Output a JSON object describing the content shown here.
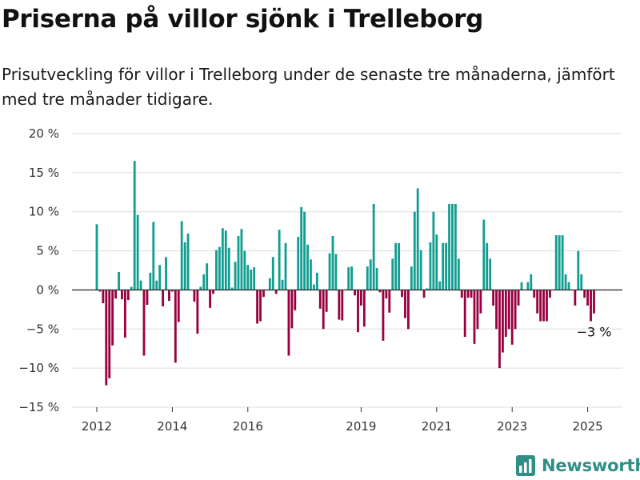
{
  "title": "Priserna på villor sjönk i Trelleborg",
  "subtitle": "Prisutveckling för villor i Trelleborg under de senaste tre månaderna, jämfört med tre månader tidigare.",
  "brand": {
    "name": "Newsworthy",
    "icon": "newsworthy-bar-chart-logo"
  },
  "colors": {
    "positive": "#129d91",
    "negative": "#990040",
    "grid": "#dddddd",
    "zero_line": "#333333"
  },
  "chart_data": {
    "type": "bar",
    "ylim": [
      -15,
      20
    ],
    "y_ticks": [
      {
        "value": 20,
        "label": "20 %"
      },
      {
        "value": 15,
        "label": "15 %"
      },
      {
        "value": 10,
        "label": "10 %"
      },
      {
        "value": 5,
        "label": "5 %"
      },
      {
        "value": 0,
        "label": "0 %"
      },
      {
        "value": -5,
        "label": "−5 %"
      },
      {
        "value": -10,
        "label": "−10 %"
      },
      {
        "value": -15,
        "label": "−15 %"
      }
    ],
    "x_ticks": [
      {
        "value": 2012,
        "label": "2012"
      },
      {
        "value": 2014,
        "label": "2014"
      },
      {
        "value": 2016,
        "label": "2016"
      },
      {
        "value": 2019,
        "label": "2019"
      },
      {
        "value": 2021,
        "label": "2021"
      },
      {
        "value": 2023,
        "label": "2023"
      },
      {
        "value": 2025,
        "label": "2025"
      }
    ],
    "x_start": "2012-01",
    "last_value_label": "−3 %",
    "values": [
      8.4,
      -0.2,
      -1.7,
      -12.2,
      -11.3,
      -7.1,
      -1.1,
      2.3,
      -1.2,
      -6.1,
      -1.3,
      0.4,
      16.5,
      9.6,
      1.2,
      -8.4,
      -1.9,
      2.2,
      8.7,
      1.2,
      3.2,
      -2.1,
      4.2,
      -1.4,
      -0.2,
      -9.3,
      -4.1,
      8.8,
      6.1,
      7.2,
      0.0,
      -1.5,
      -5.6,
      0.4,
      2.0,
      3.4,
      -2.3,
      -0.5,
      5.1,
      5.5,
      7.9,
      7.6,
      5.4,
      0.3,
      3.6,
      6.9,
      7.8,
      5.0,
      3.2,
      2.6,
      2.9,
      -4.3,
      -4.0,
      -0.9,
      0.0,
      1.5,
      4.2,
      -0.5,
      7.7,
      1.3,
      6.0,
      -8.4,
      -4.9,
      -2.6,
      6.8,
      10.6,
      10.0,
      5.8,
      3.9,
      0.7,
      2.2,
      -2.4,
      -5.0,
      -2.8,
      4.7,
      6.9,
      4.6,
      -3.8,
      -3.9,
      0.0,
      2.9,
      3.0,
      -0.7,
      -5.4,
      -2.0,
      -4.7,
      3.0,
      3.9,
      11.0,
      2.8,
      -0.3,
      -6.5,
      -1.1,
      -2.9,
      4.0,
      6.0,
      6.0,
      -0.9,
      -3.6,
      -5.0,
      3.0,
      10.0,
      13.0,
      5.1,
      -1.0,
      0.2,
      6.1,
      10.0,
      7.1,
      1.1,
      6.0,
      6.0,
      11.0,
      11.0,
      11.0,
      4.0,
      -1.0,
      -6.0,
      -1.0,
      -1.0,
      -6.9,
      -5.0,
      -3.0,
      9.0,
      6.0,
      4.0,
      -2.0,
      -5.0,
      -10.0,
      -8.0,
      -6.0,
      -5.0,
      -7.0,
      -5.0,
      -2.0,
      1.0,
      0.0,
      1.0,
      2.0,
      -1.0,
      -3.0,
      -4.0,
      -4.0,
      -4.0,
      -1.0,
      0.0,
      7.0,
      7.0,
      7.0,
      2.0,
      1.0,
      0.0,
      -2.0,
      5.0,
      2.0,
      -1.0,
      -2.0,
      -4.0,
      -3.0
    ]
  }
}
